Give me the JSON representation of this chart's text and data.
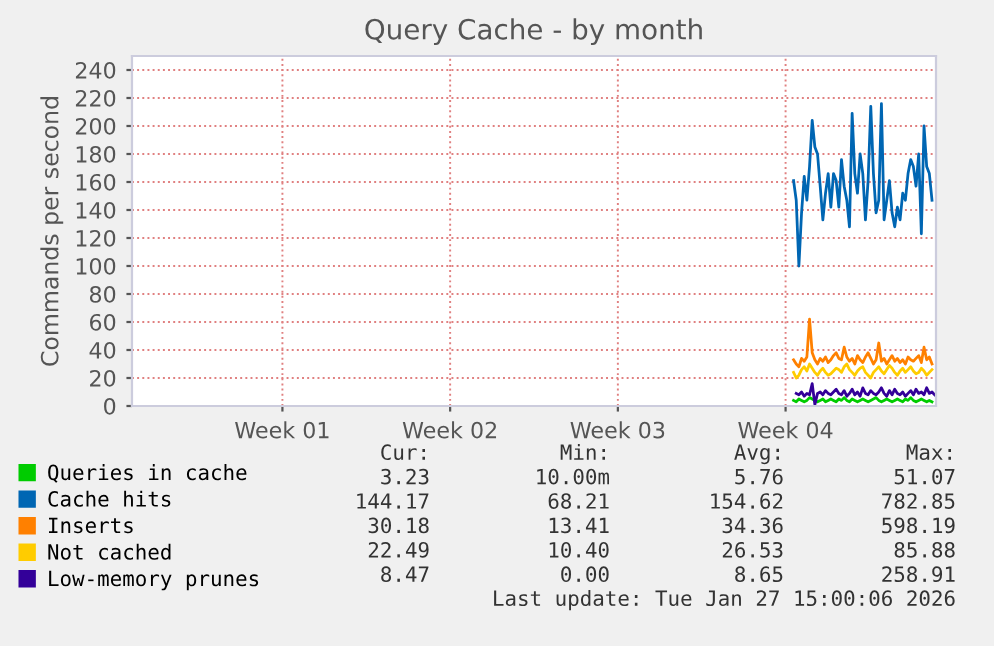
{
  "chart_data": {
    "type": "line",
    "title": "Query Cache - by month",
    "ylabel": "Commands per second",
    "categories": [
      null,
      null,
      null,
      null,
      null,
      null,
      null,
      null,
      null,
      null,
      null,
      null,
      null,
      null,
      null,
      null,
      null,
      null,
      null,
      null,
      null,
      null,
      null,
      null,
      null,
      null,
      null,
      null,
      null,
      null,
      null,
      null,
      null,
      null,
      null,
      null,
      null,
      null,
      null,
      null,
      null,
      null,
      null,
      null,
      null,
      null,
      null,
      null,
      null,
      null,
      null,
      null,
      null,
      null,
      null,
      null,
      "Week 01",
      null,
      null,
      null,
      null,
      null,
      null,
      null,
      null,
      null,
      null,
      null,
      null,
      null,
      null,
      null,
      null,
      null,
      null,
      null,
      null,
      null,
      null,
      null,
      null,
      null,
      null,
      null,
      null,
      null,
      null,
      null,
      null,
      null,
      null,
      null,
      null,
      null,
      null,
      null,
      null,
      null,
      null,
      null,
      null,
      null,
      null,
      null,
      null,
      null,
      null,
      null,
      null,
      null,
      null,
      null,
      null,
      null,
      null,
      null,
      null,
      null,
      null,
      "Week 02",
      null,
      null,
      null,
      null,
      null,
      null,
      null,
      null,
      null,
      null,
      null,
      null,
      null,
      null,
      null,
      null,
      null,
      null,
      null,
      null,
      null,
      null,
      null,
      null,
      null,
      null,
      null,
      null,
      null,
      null,
      null,
      null,
      null,
      null,
      null,
      null,
      null,
      null,
      null,
      null,
      null,
      null,
      null,
      null,
      null,
      null,
      null,
      null,
      null,
      null,
      null,
      null,
      null,
      null,
      null,
      null,
      null,
      null,
      null,
      null,
      null,
      null,
      "Week 03",
      null,
      null,
      null,
      null,
      null,
      null,
      null,
      null,
      null,
      null,
      null,
      null,
      null,
      null,
      null,
      null,
      null,
      null,
      null,
      null,
      null,
      null,
      null,
      null,
      null,
      null,
      null,
      null,
      null,
      null,
      null,
      null,
      null,
      null,
      null,
      null,
      null,
      null,
      null,
      null,
      null,
      null,
      null,
      null,
      null,
      null,
      null,
      null,
      null,
      null,
      null,
      null,
      null,
      null,
      null,
      null,
      null,
      null,
      null,
      null,
      null,
      null,
      "Week 04",
      null,
      null,
      null,
      null,
      null,
      null,
      null,
      null,
      null,
      null,
      null,
      null,
      null,
      null,
      null,
      null,
      null,
      null,
      null,
      null,
      null,
      null,
      null,
      null,
      null,
      null,
      null,
      null,
      null,
      null,
      null,
      null,
      null,
      null,
      null,
      null,
      null,
      null,
      null,
      null,
      null,
      null,
      null,
      null,
      null,
      null,
      null,
      null,
      null,
      null,
      null,
      null,
      null,
      null,
      null,
      null
    ],
    "series": [
      {
        "name": "Queries in cache",
        "color": "#00cc00",
        "values": [
          null,
          null,
          null,
          null,
          null,
          null,
          null,
          null,
          null,
          null,
          null,
          null,
          null,
          null,
          null,
          null,
          null,
          null,
          null,
          null,
          null,
          null,
          null,
          null,
          null,
          null,
          null,
          null,
          null,
          null,
          null,
          null,
          null,
          null,
          null,
          null,
          null,
          null,
          null,
          null,
          null,
          null,
          null,
          null,
          null,
          null,
          null,
          null,
          null,
          null,
          null,
          null,
          null,
          null,
          null,
          null,
          null,
          null,
          null,
          null,
          null,
          null,
          null,
          null,
          null,
          null,
          null,
          null,
          null,
          null,
          null,
          null,
          null,
          null,
          null,
          null,
          null,
          null,
          null,
          null,
          null,
          null,
          null,
          null,
          null,
          null,
          null,
          null,
          null,
          null,
          null,
          null,
          null,
          null,
          null,
          null,
          null,
          null,
          null,
          null,
          null,
          null,
          null,
          null,
          null,
          null,
          null,
          null,
          null,
          null,
          null,
          null,
          null,
          null,
          null,
          null,
          null,
          null,
          null,
          null,
          null,
          null,
          null,
          null,
          null,
          null,
          null,
          null,
          null,
          null,
          null,
          null,
          null,
          null,
          null,
          null,
          null,
          null,
          null,
          null,
          null,
          null,
          null,
          null,
          null,
          null,
          null,
          null,
          null,
          null,
          null,
          null,
          null,
          null,
          null,
          null,
          null,
          null,
          null,
          null,
          null,
          null,
          null,
          null,
          null,
          null,
          null,
          null,
          null,
          null,
          null,
          null,
          null,
          null,
          null,
          null,
          null,
          null,
          null,
          null,
          null,
          null,
          null,
          null,
          null,
          null,
          null,
          null,
          null,
          null,
          null,
          null,
          null,
          null,
          null,
          null,
          null,
          null,
          null,
          null,
          null,
          null,
          null,
          null,
          null,
          null,
          null,
          null,
          null,
          null,
          null,
          null,
          null,
          null,
          null,
          null,
          null,
          null,
          null,
          null,
          null,
          null,
          null,
          null,
          null,
          null,
          null,
          null,
          null,
          null,
          null,
          null,
          null,
          null,
          null,
          null,
          null,
          null,
          null,
          null,
          null,
          null,
          null,
          null,
          null,
          null,
          null,
          null,
          4,
          3,
          5,
          4,
          3,
          4,
          6,
          5,
          4,
          3,
          4,
          5,
          3,
          4,
          5,
          4,
          3,
          5,
          4,
          6,
          4,
          3,
          5,
          4,
          3,
          4,
          5,
          4,
          3,
          4,
          5,
          6,
          4,
          3,
          4,
          5,
          4,
          3,
          4,
          5,
          4,
          3,
          5,
          4,
          6,
          4,
          3,
          4,
          5,
          4,
          3,
          4,
          3,
          null
        ]
      },
      {
        "name": "Cache hits",
        "color": "#0066b3",
        "values": [
          null,
          null,
          null,
          null,
          null,
          null,
          null,
          null,
          null,
          null,
          null,
          null,
          null,
          null,
          null,
          null,
          null,
          null,
          null,
          null,
          null,
          null,
          null,
          null,
          null,
          null,
          null,
          null,
          null,
          null,
          null,
          null,
          null,
          null,
          null,
          null,
          null,
          null,
          null,
          null,
          null,
          null,
          null,
          null,
          null,
          null,
          null,
          null,
          null,
          null,
          null,
          null,
          null,
          null,
          null,
          null,
          null,
          null,
          null,
          null,
          null,
          null,
          null,
          null,
          null,
          null,
          null,
          null,
          null,
          null,
          null,
          null,
          null,
          null,
          null,
          null,
          null,
          null,
          null,
          null,
          null,
          null,
          null,
          null,
          null,
          null,
          null,
          null,
          null,
          null,
          null,
          null,
          null,
          null,
          null,
          null,
          null,
          null,
          null,
          null,
          null,
          null,
          null,
          null,
          null,
          null,
          null,
          null,
          null,
          null,
          null,
          null,
          null,
          null,
          null,
          null,
          null,
          null,
          null,
          null,
          null,
          null,
          null,
          null,
          null,
          null,
          null,
          null,
          null,
          null,
          null,
          null,
          null,
          null,
          null,
          null,
          null,
          null,
          null,
          null,
          null,
          null,
          null,
          null,
          null,
          null,
          null,
          null,
          null,
          null,
          null,
          null,
          null,
          null,
          null,
          null,
          null,
          null,
          null,
          null,
          null,
          null,
          null,
          null,
          null,
          null,
          null,
          null,
          null,
          null,
          null,
          null,
          null,
          null,
          null,
          null,
          null,
          null,
          null,
          null,
          null,
          null,
          null,
          null,
          null,
          null,
          null,
          null,
          null,
          null,
          null,
          null,
          null,
          null,
          null,
          null,
          null,
          null,
          null,
          null,
          null,
          null,
          null,
          null,
          null,
          null,
          null,
          null,
          null,
          null,
          null,
          null,
          null,
          null,
          null,
          null,
          null,
          null,
          null,
          null,
          null,
          null,
          null,
          null,
          null,
          null,
          null,
          null,
          null,
          null,
          null,
          null,
          null,
          null,
          null,
          null,
          null,
          null,
          null,
          null,
          null,
          null,
          null,
          null,
          null,
          null,
          null,
          null,
          161,
          147,
          100,
          138,
          164,
          147,
          171,
          204,
          185,
          180,
          157,
          133,
          152,
          166,
          142,
          166,
          161,
          142,
          176,
          157,
          147,
          128,
          209,
          166,
          152,
          180,
          166,
          133,
          161,
          214,
          166,
          138,
          147,
          216,
          133,
          147,
          161,
          138,
          128,
          142,
          133,
          152,
          147,
          166,
          176,
          171,
          157,
          180,
          123,
          200,
          171,
          166,
          147,
          null
        ]
      },
      {
        "name": "Inserts",
        "color": "#ff8000",
        "values": [
          null,
          null,
          null,
          null,
          null,
          null,
          null,
          null,
          null,
          null,
          null,
          null,
          null,
          null,
          null,
          null,
          null,
          null,
          null,
          null,
          null,
          null,
          null,
          null,
          null,
          null,
          null,
          null,
          null,
          null,
          null,
          null,
          null,
          null,
          null,
          null,
          null,
          null,
          null,
          null,
          null,
          null,
          null,
          null,
          null,
          null,
          null,
          null,
          null,
          null,
          null,
          null,
          null,
          null,
          null,
          null,
          null,
          null,
          null,
          null,
          null,
          null,
          null,
          null,
          null,
          null,
          null,
          null,
          null,
          null,
          null,
          null,
          null,
          null,
          null,
          null,
          null,
          null,
          null,
          null,
          null,
          null,
          null,
          null,
          null,
          null,
          null,
          null,
          null,
          null,
          null,
          null,
          null,
          null,
          null,
          null,
          null,
          null,
          null,
          null,
          null,
          null,
          null,
          null,
          null,
          null,
          null,
          null,
          null,
          null,
          null,
          null,
          null,
          null,
          null,
          null,
          null,
          null,
          null,
          null,
          null,
          null,
          null,
          null,
          null,
          null,
          null,
          null,
          null,
          null,
          null,
          null,
          null,
          null,
          null,
          null,
          null,
          null,
          null,
          null,
          null,
          null,
          null,
          null,
          null,
          null,
          null,
          null,
          null,
          null,
          null,
          null,
          null,
          null,
          null,
          null,
          null,
          null,
          null,
          null,
          null,
          null,
          null,
          null,
          null,
          null,
          null,
          null,
          null,
          null,
          null,
          null,
          null,
          null,
          null,
          null,
          null,
          null,
          null,
          null,
          null,
          null,
          null,
          null,
          null,
          null,
          null,
          null,
          null,
          null,
          null,
          null,
          null,
          null,
          null,
          null,
          null,
          null,
          null,
          null,
          null,
          null,
          null,
          null,
          null,
          null,
          null,
          null,
          null,
          null,
          null,
          null,
          null,
          null,
          null,
          null,
          null,
          null,
          null,
          null,
          null,
          null,
          null,
          null,
          null,
          null,
          null,
          null,
          null,
          null,
          null,
          null,
          null,
          null,
          null,
          null,
          null,
          null,
          null,
          null,
          null,
          null,
          null,
          null,
          null,
          null,
          null,
          null,
          33,
          30,
          28,
          34,
          32,
          35,
          62,
          38,
          33,
          30,
          34,
          32,
          35,
          31,
          33,
          36,
          38,
          34,
          33,
          42,
          35,
          32,
          34,
          30,
          36,
          33,
          31,
          35,
          38,
          34,
          30,
          33,
          45,
          32,
          34,
          30,
          33,
          36,
          32,
          34,
          31,
          33,
          30,
          35,
          33,
          32,
          34,
          36,
          31,
          42,
          33,
          35,
          30,
          null
        ]
      },
      {
        "name": "Not cached",
        "color": "#ffcc00",
        "values": [
          null,
          null,
          null,
          null,
          null,
          null,
          null,
          null,
          null,
          null,
          null,
          null,
          null,
          null,
          null,
          null,
          null,
          null,
          null,
          null,
          null,
          null,
          null,
          null,
          null,
          null,
          null,
          null,
          null,
          null,
          null,
          null,
          null,
          null,
          null,
          null,
          null,
          null,
          null,
          null,
          null,
          null,
          null,
          null,
          null,
          null,
          null,
          null,
          null,
          null,
          null,
          null,
          null,
          null,
          null,
          null,
          null,
          null,
          null,
          null,
          null,
          null,
          null,
          null,
          null,
          null,
          null,
          null,
          null,
          null,
          null,
          null,
          null,
          null,
          null,
          null,
          null,
          null,
          null,
          null,
          null,
          null,
          null,
          null,
          null,
          null,
          null,
          null,
          null,
          null,
          null,
          null,
          null,
          null,
          null,
          null,
          null,
          null,
          null,
          null,
          null,
          null,
          null,
          null,
          null,
          null,
          null,
          null,
          null,
          null,
          null,
          null,
          null,
          null,
          null,
          null,
          null,
          null,
          null,
          null,
          null,
          null,
          null,
          null,
          null,
          null,
          null,
          null,
          null,
          null,
          null,
          null,
          null,
          null,
          null,
          null,
          null,
          null,
          null,
          null,
          null,
          null,
          null,
          null,
          null,
          null,
          null,
          null,
          null,
          null,
          null,
          null,
          null,
          null,
          null,
          null,
          null,
          null,
          null,
          null,
          null,
          null,
          null,
          null,
          null,
          null,
          null,
          null,
          null,
          null,
          null,
          null,
          null,
          null,
          null,
          null,
          null,
          null,
          null,
          null,
          null,
          null,
          null,
          null,
          null,
          null,
          null,
          null,
          null,
          null,
          null,
          null,
          null,
          null,
          null,
          null,
          null,
          null,
          null,
          null,
          null,
          null,
          null,
          null,
          null,
          null,
          null,
          null,
          null,
          null,
          null,
          null,
          null,
          null,
          null,
          null,
          null,
          null,
          null,
          null,
          null,
          null,
          null,
          null,
          null,
          null,
          null,
          null,
          null,
          null,
          null,
          null,
          null,
          null,
          null,
          null,
          null,
          null,
          null,
          null,
          null,
          null,
          null,
          null,
          null,
          null,
          null,
          null,
          24,
          20,
          22,
          26,
          28,
          25,
          30,
          27,
          24,
          22,
          25,
          27,
          24,
          22,
          23,
          25,
          27,
          26,
          24,
          28,
          30,
          26,
          24,
          22,
          25,
          27,
          28,
          24,
          22,
          20,
          24,
          26,
          28,
          25,
          23,
          26,
          29,
          27,
          24,
          22,
          25,
          27,
          24,
          26,
          28,
          25,
          23,
          24,
          27,
          25,
          22,
          24,
          26,
          null
        ]
      },
      {
        "name": "Low-memory prunes",
        "color": "#330099",
        "values": [
          null,
          null,
          null,
          null,
          null,
          null,
          null,
          null,
          null,
          null,
          null,
          null,
          null,
          null,
          null,
          null,
          null,
          null,
          null,
          null,
          null,
          null,
          null,
          null,
          null,
          null,
          null,
          null,
          null,
          null,
          null,
          null,
          null,
          null,
          null,
          null,
          null,
          null,
          null,
          null,
          null,
          null,
          null,
          null,
          null,
          null,
          null,
          null,
          null,
          null,
          null,
          null,
          null,
          null,
          null,
          null,
          null,
          null,
          null,
          null,
          null,
          null,
          null,
          null,
          null,
          null,
          null,
          null,
          null,
          null,
          null,
          null,
          null,
          null,
          null,
          null,
          null,
          null,
          null,
          null,
          null,
          null,
          null,
          null,
          null,
          null,
          null,
          null,
          null,
          null,
          null,
          null,
          null,
          null,
          null,
          null,
          null,
          null,
          null,
          null,
          null,
          null,
          null,
          null,
          null,
          null,
          null,
          null,
          null,
          null,
          null,
          null,
          null,
          null,
          null,
          null,
          null,
          null,
          null,
          null,
          null,
          null,
          null,
          null,
          null,
          null,
          null,
          null,
          null,
          null,
          null,
          null,
          null,
          null,
          null,
          null,
          null,
          null,
          null,
          null,
          null,
          null,
          null,
          null,
          null,
          null,
          null,
          null,
          null,
          null,
          null,
          null,
          null,
          null,
          null,
          null,
          null,
          null,
          null,
          null,
          null,
          null,
          null,
          null,
          null,
          null,
          null,
          null,
          null,
          null,
          null,
          null,
          null,
          null,
          null,
          null,
          null,
          null,
          null,
          null,
          null,
          null,
          null,
          null,
          null,
          null,
          null,
          null,
          null,
          null,
          null,
          null,
          null,
          null,
          null,
          null,
          null,
          null,
          null,
          null,
          null,
          null,
          null,
          null,
          null,
          null,
          null,
          null,
          null,
          null,
          null,
          null,
          null,
          null,
          null,
          null,
          null,
          null,
          null,
          null,
          null,
          null,
          null,
          null,
          null,
          null,
          null,
          null,
          null,
          null,
          null,
          null,
          null,
          null,
          null,
          null,
          null,
          null,
          null,
          null,
          null,
          null,
          null,
          null,
          null,
          null,
          null,
          null,
          null,
          9,
          8,
          10,
          7,
          9,
          8,
          16,
          1,
          9,
          10,
          8,
          11,
          9,
          8,
          10,
          12,
          9,
          8,
          11,
          7,
          9,
          12,
          8,
          10,
          7,
          13,
          9,
          8,
          11,
          9,
          8,
          10,
          13,
          9,
          7,
          11,
          8,
          12,
          9,
          8,
          10,
          7,
          9,
          11,
          8,
          12,
          9,
          10,
          8,
          13,
          9,
          10,
          8
        ]
      }
    ],
    "ylim": [
      0,
      250
    ],
    "yticks": [
      0,
      20,
      40,
      60,
      80,
      100,
      120,
      140,
      160,
      180,
      200,
      220,
      240
    ],
    "grid": true,
    "legend": "bottom",
    "marker": "none",
    "line_style": "solid",
    "annotations": [
      "Cur:",
      "Min:",
      "Avg:",
      "Max:",
      "3.23",
      "10.00m",
      "5.76",
      "51.07",
      "144.17",
      "68.21",
      "154.62",
      "782.85",
      "30.18",
      "13.41",
      "34.36",
      "598.19",
      "22.49",
      "10.40",
      "26.53",
      "85.88",
      "8.47",
      "0.00",
      "8.65",
      "258.91",
      "Last update: Tue Jan 27 15:00:06 2026"
    ]
  }
}
